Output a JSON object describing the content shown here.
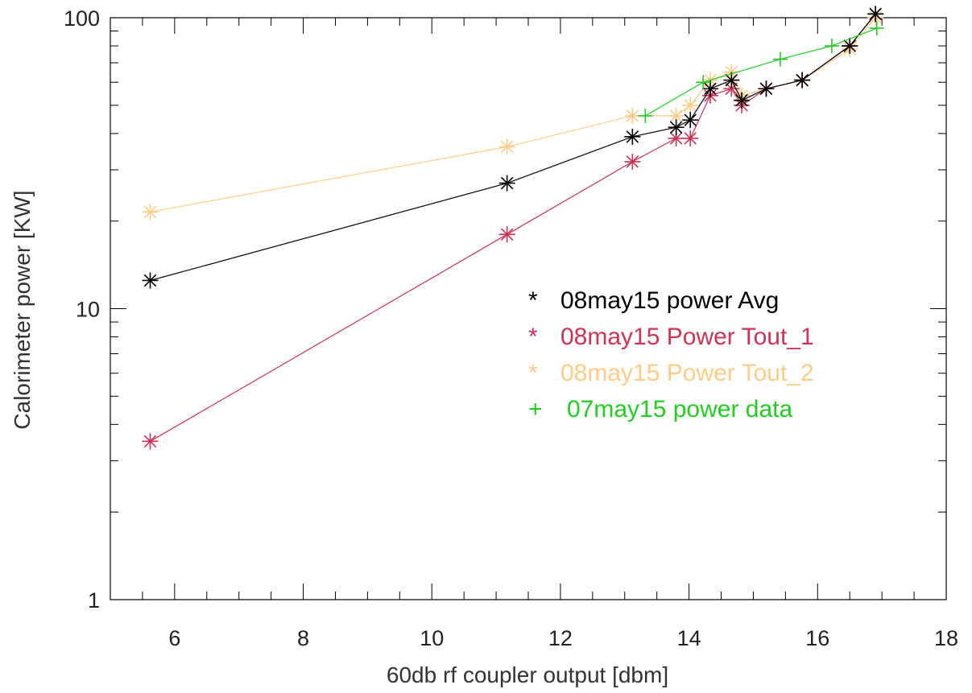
{
  "chart_data": {
    "type": "line",
    "title": "",
    "xlabel": "60db rf coupler output [dbm]",
    "ylabel": "Calorimeter power [KW]",
    "xlim": [
      5,
      18
    ],
    "ylim": [
      1,
      100
    ],
    "y_scale": "log",
    "grid": false,
    "legend_position": "center-right",
    "x_ticks": [
      "6",
      "8",
      "10",
      "12",
      "14",
      "16",
      "18"
    ],
    "y_ticks": [
      "1",
      "10",
      "100"
    ],
    "series": [
      {
        "name": "08may15 power Avg",
        "legend_symbol": "*",
        "color": "#000000",
        "marker": "asterisk",
        "x": [
          5.62,
          11.17,
          13.12,
          13.8,
          14.02,
          14.33,
          14.66,
          14.82,
          15.2,
          15.76,
          16.5,
          16.9
        ],
        "y": [
          12.5,
          27,
          39,
          42,
          44.5,
          57,
          61,
          52,
          57,
          61,
          80,
          103
        ]
      },
      {
        "name": "08may15 Power Tout_1",
        "legend_symbol": "*",
        "color": "#cc3355",
        "marker": "asterisk",
        "x": [
          5.62,
          11.17,
          13.12,
          13.8,
          14.02,
          14.33,
          14.66,
          14.82,
          15.2,
          15.76,
          16.5,
          16.9
        ],
        "y": [
          3.5,
          18,
          32,
          38.5,
          38.5,
          54,
          57,
          50,
          57,
          61,
          80,
          103
        ]
      },
      {
        "name": "08may15 Power Tout_2",
        "legend_symbol": "*",
        "color": "#ffcc88",
        "marker": "asterisk",
        "x": [
          5.62,
          11.17,
          13.12,
          13.8,
          14.02,
          14.33,
          14.66,
          14.82,
          15.2,
          15.76,
          16.5,
          16.9
        ],
        "y": [
          21.5,
          36,
          46,
          46,
          50,
          61,
          65,
          54,
          57,
          61,
          78,
          100
        ]
      },
      {
        "name": "07may15 power data",
        "legend_symbol": "+",
        "color": "#22cc22",
        "marker": "plus",
        "x": [
          13.32,
          14.22,
          15.42,
          16.22,
          16.92
        ],
        "y": [
          46,
          60,
          72,
          80,
          92
        ]
      }
    ]
  }
}
